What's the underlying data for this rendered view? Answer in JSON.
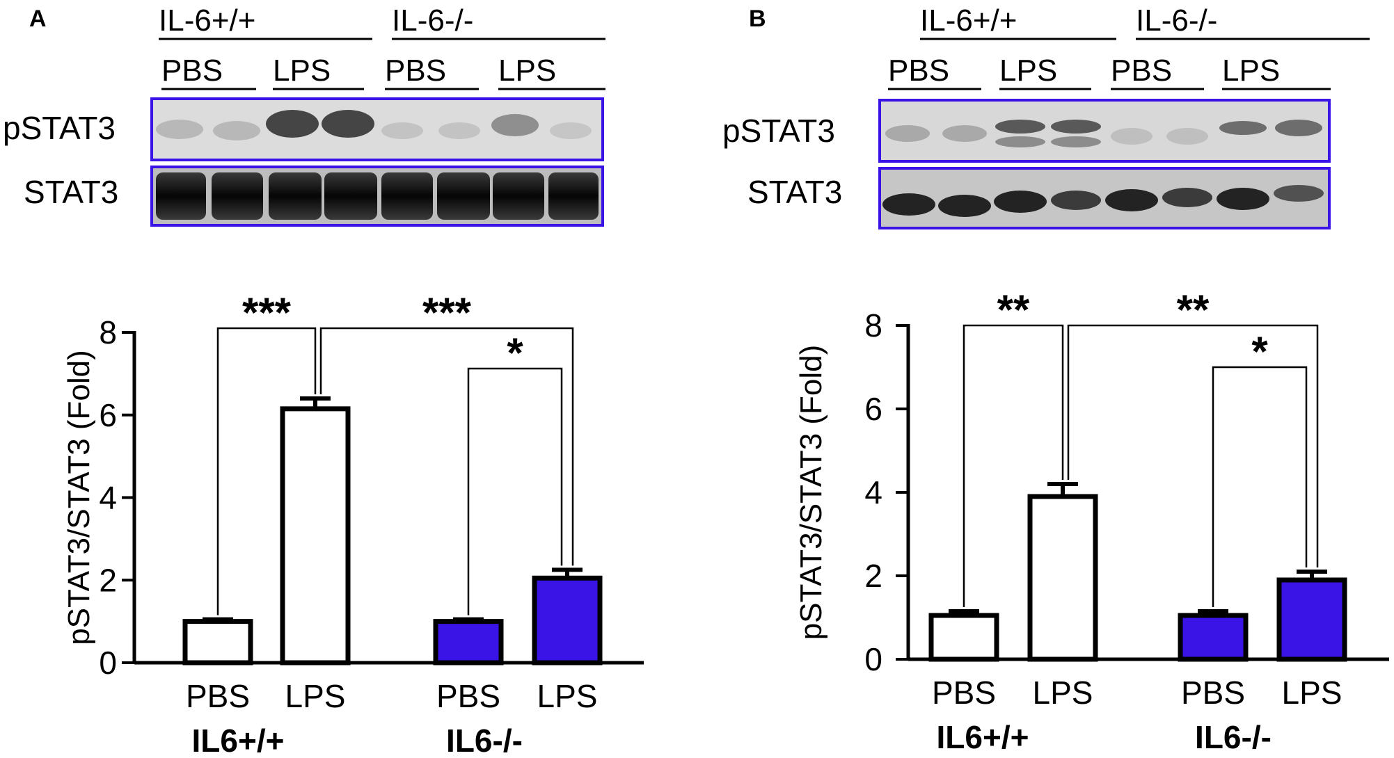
{
  "colors": {
    "knockout_fill": "#3a14e6",
    "wildtype_fill": "#ffffff",
    "blot_border": "#3a14e6",
    "axis": "#000000"
  },
  "panels": [
    {
      "letter": "A",
      "blot": {
        "genotype_labels": [
          "IL-6+/+",
          "IL-6-/-"
        ],
        "treatment_labels": [
          "PBS",
          "LPS",
          "PBS",
          "LPS"
        ],
        "row_labels": [
          "pSTAT3",
          "STAT3"
        ]
      }
    },
    {
      "letter": "B",
      "blot": {
        "genotype_labels": [
          "IL-6+/+",
          "IL-6-/-"
        ],
        "treatment_labels": [
          "PBS",
          "LPS",
          "PBS",
          "LPS"
        ],
        "row_labels": [
          "pSTAT3",
          "STAT3"
        ]
      }
    }
  ],
  "chart_data": [
    {
      "type": "bar",
      "panel": "A",
      "ylabel": "pSTAT3/STAT3 (Fold)",
      "ylim": [
        0,
        8
      ],
      "yticks": [
        "0",
        "2",
        "4",
        "6",
        "8"
      ],
      "categories": [
        "PBS",
        "LPS",
        "PBS",
        "LPS"
      ],
      "group_labels": [
        "IL6+/+",
        "IL6-/-"
      ],
      "values": [
        1.0,
        6.15,
        1.0,
        2.05
      ],
      "errors": [
        0.05,
        0.25,
        0.05,
        0.2
      ],
      "fills": [
        "#ffffff",
        "#ffffff",
        "#3a14e6",
        "#3a14e6"
      ],
      "significance": [
        {
          "from": 0,
          "to": 1,
          "label": "***"
        },
        {
          "from": 1,
          "to": 3,
          "label": "***"
        },
        {
          "from": 2,
          "to": 3,
          "label": "*"
        }
      ]
    },
    {
      "type": "bar",
      "panel": "B",
      "ylabel": "pSTAT3/STAT3 (Fold)",
      "ylim": [
        0,
        8
      ],
      "yticks": [
        "0",
        "2",
        "4",
        "6",
        "8"
      ],
      "categories": [
        "PBS",
        "LPS",
        "PBS",
        "LPS"
      ],
      "group_labels": [
        "IL6+/+",
        "IL6-/-"
      ],
      "values": [
        1.05,
        3.9,
        1.05,
        1.9
      ],
      "errors": [
        0.1,
        0.3,
        0.1,
        0.2
      ],
      "fills": [
        "#ffffff",
        "#ffffff",
        "#3a14e6",
        "#3a14e6"
      ],
      "significance": [
        {
          "from": 0,
          "to": 1,
          "label": "**"
        },
        {
          "from": 1,
          "to": 3,
          "label": "**"
        },
        {
          "from": 2,
          "to": 3,
          "label": "*"
        }
      ]
    }
  ]
}
